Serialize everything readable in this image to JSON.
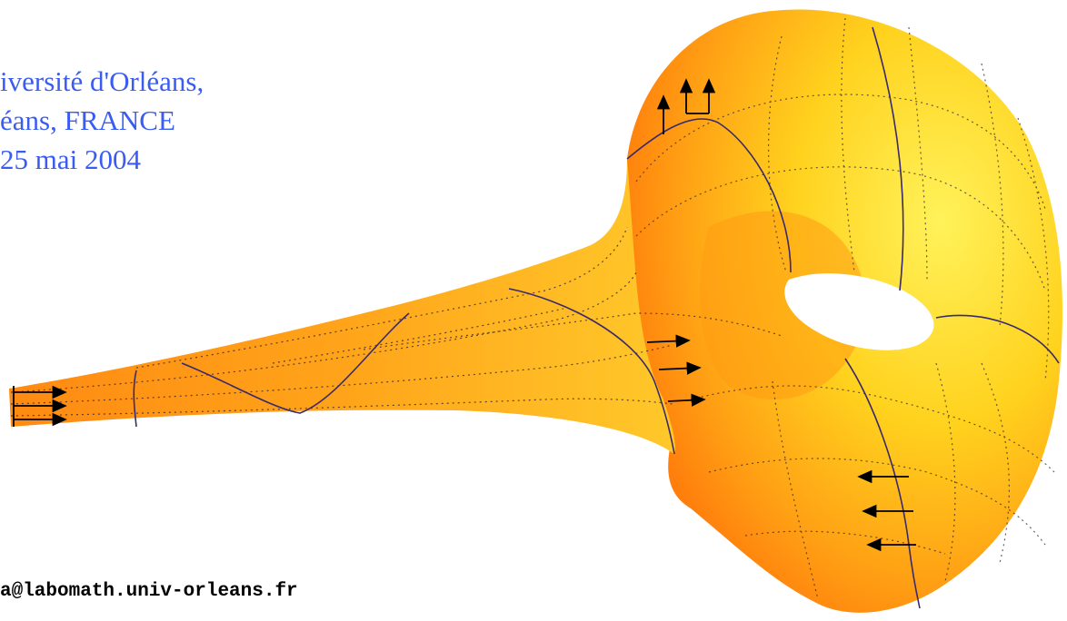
{
  "text": {
    "line1": "iversité d'Orléans,",
    "line2": "éans, FRANCE",
    "line3": "25 mai 2004",
    "email": "a@labomath.univ-orleans.fr"
  },
  "illustration": {
    "name": "horn-torus-surface",
    "color_light": "#ffe84a",
    "color_mid": "#ffb020",
    "color_dark": "#ff7a10",
    "line_color": "#3a2a6a",
    "arrow_color": "#000000"
  }
}
